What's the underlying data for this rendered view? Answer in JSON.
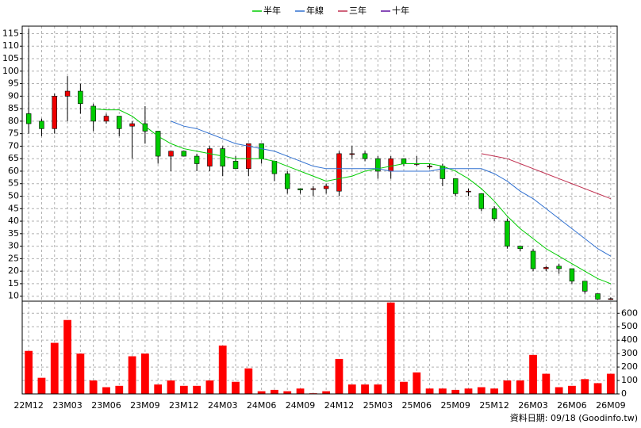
{
  "chart_data": {
    "type": "candlestick",
    "categories": [
      "22M12",
      null,
      null,
      "23M03",
      null,
      null,
      "23M06",
      null,
      null,
      "23M09",
      null,
      null,
      "23M12",
      null,
      null,
      "24M03",
      null,
      null,
      "24M06",
      null,
      null,
      "24M09",
      null,
      null,
      "24M12",
      null,
      null,
      "25M03",
      null,
      null,
      "25M06",
      null,
      null,
      "25M09",
      null,
      null,
      "25M12",
      null,
      null,
      "26M03",
      null,
      null,
      "26M06",
      null,
      null,
      "26M09"
    ],
    "open": [
      83,
      80,
      77,
      90,
      92,
      86,
      80,
      82,
      78,
      79,
      76,
      66,
      68,
      66,
      62,
      69,
      64,
      61,
      71,
      64,
      59,
      53,
      53,
      53,
      52,
      67,
      67,
      65,
      60,
      65,
      63,
      62,
      62,
      57,
      52,
      51,
      45,
      40,
      30,
      28,
      21,
      22,
      21,
      16,
      11,
      9
    ],
    "high": [
      117,
      81,
      91,
      98,
      95,
      87,
      83,
      82,
      80,
      86,
      76,
      68,
      68,
      67,
      70,
      70,
      66,
      71,
      71,
      64,
      60,
      53,
      54,
      55,
      68,
      70,
      68,
      66,
      66,
      65,
      66,
      63,
      63,
      57,
      53,
      51,
      46,
      41,
      30,
      29,
      22,
      23,
      21,
      16,
      11,
      9.5
    ],
    "low": [
      75,
      74,
      75,
      80,
      83,
      76,
      79,
      74,
      65,
      71,
      63,
      60,
      66,
      60,
      60,
      58,
      61,
      58,
      63,
      56,
      51,
      51,
      50,
      51,
      50,
      65,
      64,
      57,
      57,
      62,
      62,
      61,
      54,
      50,
      50,
      44,
      40,
      29,
      28,
      20,
      20,
      19,
      15,
      11,
      8.5,
      8.5
    ],
    "close": [
      79,
      77,
      90,
      92,
      87,
      80,
      82,
      77,
      79,
      76,
      66,
      68,
      66,
      63,
      69,
      62,
      61,
      71,
      65,
      59,
      53,
      52.5,
      53,
      54,
      67,
      67,
      65,
      60,
      65,
      63,
      63,
      62,
      57,
      51,
      52,
      45,
      41,
      30,
      29,
      21,
      21.5,
      21,
      16,
      12,
      8.8,
      9
    ],
    "up_color": "#ee0000",
    "down_color": "#00cc00",
    "series": [
      {
        "name": "半年",
        "color": "#00cc00",
        "values": [
          null,
          null,
          null,
          null,
          null,
          85,
          84.5,
          84.5,
          82,
          78,
          74,
          71,
          69,
          68,
          67,
          66,
          65,
          65,
          65,
          64,
          62,
          60,
          58,
          56,
          57,
          58,
          60,
          61,
          62,
          63,
          63,
          63,
          62,
          60,
          57,
          53,
          48,
          42,
          37,
          33,
          29,
          26,
          23,
          20,
          17,
          15
        ]
      },
      {
        "name": "年線",
        "color": "#3070d0",
        "values": [
          null,
          null,
          null,
          null,
          null,
          null,
          null,
          null,
          null,
          null,
          null,
          80,
          78,
          77,
          75,
          73,
          71,
          70,
          69,
          68,
          66,
          64,
          62,
          61,
          61,
          61,
          61,
          61,
          60,
          60,
          60,
          60,
          61,
          61,
          61,
          61,
          59,
          56,
          52,
          49,
          45,
          41,
          37,
          33,
          29,
          26
        ]
      },
      {
        "name": "三年",
        "color": "#c03050",
        "values": [
          null,
          null,
          null,
          null,
          null,
          null,
          null,
          null,
          null,
          null,
          null,
          null,
          null,
          null,
          null,
          null,
          null,
          null,
          null,
          null,
          null,
          null,
          null,
          null,
          null,
          null,
          null,
          null,
          null,
          null,
          null,
          null,
          null,
          null,
          null,
          67,
          66,
          65,
          63,
          61,
          59,
          57,
          55,
          53,
          51,
          49
        ]
      },
      {
        "name": "十年",
        "color": "#6010a0",
        "values": [
          null,
          null,
          null,
          null,
          null,
          null,
          null,
          null,
          null,
          null,
          null,
          null,
          null,
          null,
          null,
          null,
          null,
          null,
          null,
          null,
          null,
          null,
          null,
          null,
          null,
          null,
          null,
          null,
          null,
          null,
          null,
          null,
          null,
          null,
          null,
          null,
          null,
          null,
          null,
          null,
          null,
          null,
          null,
          null,
          null,
          null
        ]
      }
    ],
    "volume": {
      "color": "#ff0000",
      "axis": "y2",
      "values": [
        320,
        120,
        380,
        550,
        300,
        100,
        50,
        60,
        280,
        300,
        70,
        100,
        60,
        60,
        100,
        360,
        90,
        190,
        20,
        30,
        20,
        40,
        5,
        20,
        260,
        70,
        70,
        70,
        680,
        90,
        160,
        40,
        40,
        30,
        40,
        50,
        40,
        100,
        100,
        290,
        150,
        50,
        60,
        110,
        80,
        150
      ]
    },
    "ylim": [
      8,
      118
    ],
    "yticks": [
      10,
      15,
      20,
      25,
      30,
      35,
      40,
      45,
      50,
      55,
      60,
      65,
      70,
      75,
      80,
      85,
      90,
      95,
      100,
      105,
      110,
      115
    ],
    "y2lim": [
      0,
      690
    ],
    "y2ticks": [
      0,
      100,
      200,
      300,
      400,
      500,
      600
    ],
    "grid": true,
    "legend": "top",
    "source": "資料日期: 09/18  (Goodinfo.tw)"
  }
}
